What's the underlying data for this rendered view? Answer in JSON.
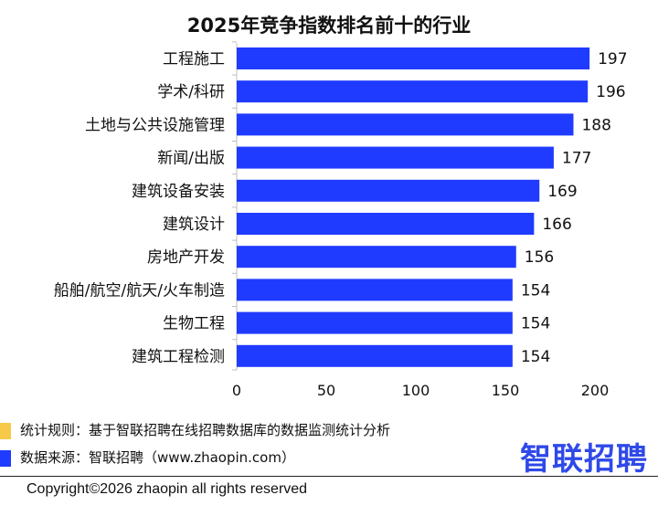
{
  "chart_data": {
    "type": "bar",
    "orientation": "horizontal",
    "title": "2025年竞争指数排名前十的行业",
    "categories": [
      "工程施工",
      "学术/科研",
      "土地与公共设施管理",
      "新闻/出版",
      "建筑设备安装",
      "建筑设计",
      "房地产开发",
      "船舶/航空/航天/火车制造",
      "生物工程",
      "建筑工程检测"
    ],
    "values": [
      197,
      196,
      188,
      177,
      169,
      166,
      156,
      154,
      154,
      154
    ],
    "xlim": [
      0,
      200
    ],
    "xticks": [
      "0",
      "50",
      "100",
      "150",
      "200"
    ],
    "bar_color": "#1f3bff",
    "grid": false
  },
  "footer": {
    "note_rule": "统计规则：基于智联招聘在线招聘数据库的数据监测统计分析",
    "note_source": "数据来源：智联招聘（www.zhaopin.com）",
    "brand": "智联招聘",
    "copyright": "Copyright©2026 zhaopin all rights reserved",
    "legend_colors": [
      "#f7c948",
      "#1f3bff"
    ]
  }
}
